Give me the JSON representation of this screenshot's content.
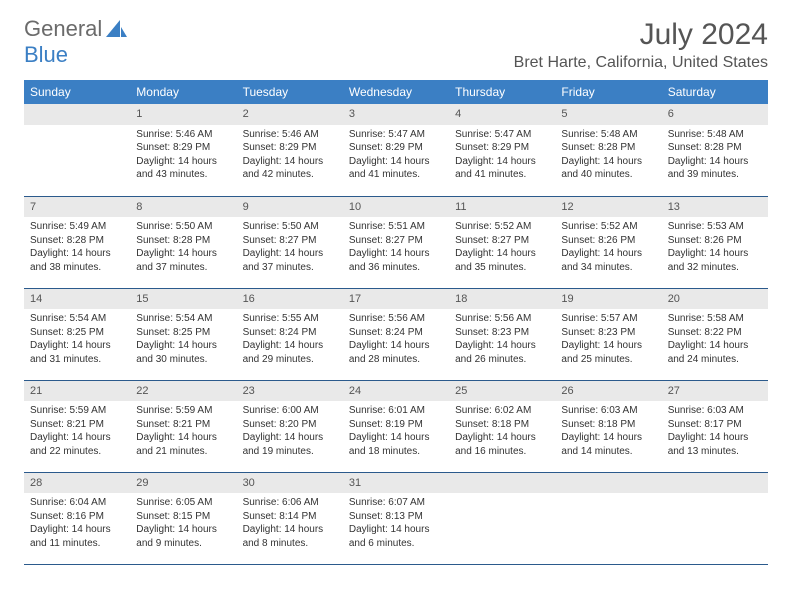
{
  "logo": {
    "text1": "General",
    "text2": "Blue",
    "accent_color": "#3b7fc4"
  },
  "title": "July 2024",
  "location": "Bret Harte, California, United States",
  "weekday_headers": [
    "Sunday",
    "Monday",
    "Tuesday",
    "Wednesday",
    "Thursday",
    "Friday",
    "Saturday"
  ],
  "colors": {
    "header_bg": "#3b7fc4",
    "header_fg": "#ffffff",
    "daynum_bg": "#e9e9e9",
    "row_border": "#2b5a8c",
    "text": "#333333",
    "title_text": "#555555"
  },
  "typography": {
    "title_fontsize": 30,
    "location_fontsize": 16,
    "header_fontsize": 12,
    "cell_fontsize": 10,
    "daynum_fontsize": 11
  },
  "layout": {
    "columns": 7,
    "rows": 5,
    "first_weekday_index": 1
  },
  "days": [
    {
      "n": 1,
      "sunrise": "5:46 AM",
      "sunset": "8:29 PM",
      "daylight": "14 hours and 43 minutes."
    },
    {
      "n": 2,
      "sunrise": "5:46 AM",
      "sunset": "8:29 PM",
      "daylight": "14 hours and 42 minutes."
    },
    {
      "n": 3,
      "sunrise": "5:47 AM",
      "sunset": "8:29 PM",
      "daylight": "14 hours and 41 minutes."
    },
    {
      "n": 4,
      "sunrise": "5:47 AM",
      "sunset": "8:29 PM",
      "daylight": "14 hours and 41 minutes."
    },
    {
      "n": 5,
      "sunrise": "5:48 AM",
      "sunset": "8:28 PM",
      "daylight": "14 hours and 40 minutes."
    },
    {
      "n": 6,
      "sunrise": "5:48 AM",
      "sunset": "8:28 PM",
      "daylight": "14 hours and 39 minutes."
    },
    {
      "n": 7,
      "sunrise": "5:49 AM",
      "sunset": "8:28 PM",
      "daylight": "14 hours and 38 minutes."
    },
    {
      "n": 8,
      "sunrise": "5:50 AM",
      "sunset": "8:28 PM",
      "daylight": "14 hours and 37 minutes."
    },
    {
      "n": 9,
      "sunrise": "5:50 AM",
      "sunset": "8:27 PM",
      "daylight": "14 hours and 37 minutes."
    },
    {
      "n": 10,
      "sunrise": "5:51 AM",
      "sunset": "8:27 PM",
      "daylight": "14 hours and 36 minutes."
    },
    {
      "n": 11,
      "sunrise": "5:52 AM",
      "sunset": "8:27 PM",
      "daylight": "14 hours and 35 minutes."
    },
    {
      "n": 12,
      "sunrise": "5:52 AM",
      "sunset": "8:26 PM",
      "daylight": "14 hours and 34 minutes."
    },
    {
      "n": 13,
      "sunrise": "5:53 AM",
      "sunset": "8:26 PM",
      "daylight": "14 hours and 32 minutes."
    },
    {
      "n": 14,
      "sunrise": "5:54 AM",
      "sunset": "8:25 PM",
      "daylight": "14 hours and 31 minutes."
    },
    {
      "n": 15,
      "sunrise": "5:54 AM",
      "sunset": "8:25 PM",
      "daylight": "14 hours and 30 minutes."
    },
    {
      "n": 16,
      "sunrise": "5:55 AM",
      "sunset": "8:24 PM",
      "daylight": "14 hours and 29 minutes."
    },
    {
      "n": 17,
      "sunrise": "5:56 AM",
      "sunset": "8:24 PM",
      "daylight": "14 hours and 28 minutes."
    },
    {
      "n": 18,
      "sunrise": "5:56 AM",
      "sunset": "8:23 PM",
      "daylight": "14 hours and 26 minutes."
    },
    {
      "n": 19,
      "sunrise": "5:57 AM",
      "sunset": "8:23 PM",
      "daylight": "14 hours and 25 minutes."
    },
    {
      "n": 20,
      "sunrise": "5:58 AM",
      "sunset": "8:22 PM",
      "daylight": "14 hours and 24 minutes."
    },
    {
      "n": 21,
      "sunrise": "5:59 AM",
      "sunset": "8:21 PM",
      "daylight": "14 hours and 22 minutes."
    },
    {
      "n": 22,
      "sunrise": "5:59 AM",
      "sunset": "8:21 PM",
      "daylight": "14 hours and 21 minutes."
    },
    {
      "n": 23,
      "sunrise": "6:00 AM",
      "sunset": "8:20 PM",
      "daylight": "14 hours and 19 minutes."
    },
    {
      "n": 24,
      "sunrise": "6:01 AM",
      "sunset": "8:19 PM",
      "daylight": "14 hours and 18 minutes."
    },
    {
      "n": 25,
      "sunrise": "6:02 AM",
      "sunset": "8:18 PM",
      "daylight": "14 hours and 16 minutes."
    },
    {
      "n": 26,
      "sunrise": "6:03 AM",
      "sunset": "8:18 PM",
      "daylight": "14 hours and 14 minutes."
    },
    {
      "n": 27,
      "sunrise": "6:03 AM",
      "sunset": "8:17 PM",
      "daylight": "14 hours and 13 minutes."
    },
    {
      "n": 28,
      "sunrise": "6:04 AM",
      "sunset": "8:16 PM",
      "daylight": "14 hours and 11 minutes."
    },
    {
      "n": 29,
      "sunrise": "6:05 AM",
      "sunset": "8:15 PM",
      "daylight": "14 hours and 9 minutes."
    },
    {
      "n": 30,
      "sunrise": "6:06 AM",
      "sunset": "8:14 PM",
      "daylight": "14 hours and 8 minutes."
    },
    {
      "n": 31,
      "sunrise": "6:07 AM",
      "sunset": "8:13 PM",
      "daylight": "14 hours and 6 minutes."
    }
  ],
  "labels": {
    "sunrise": "Sunrise:",
    "sunset": "Sunset:",
    "daylight": "Daylight:"
  }
}
